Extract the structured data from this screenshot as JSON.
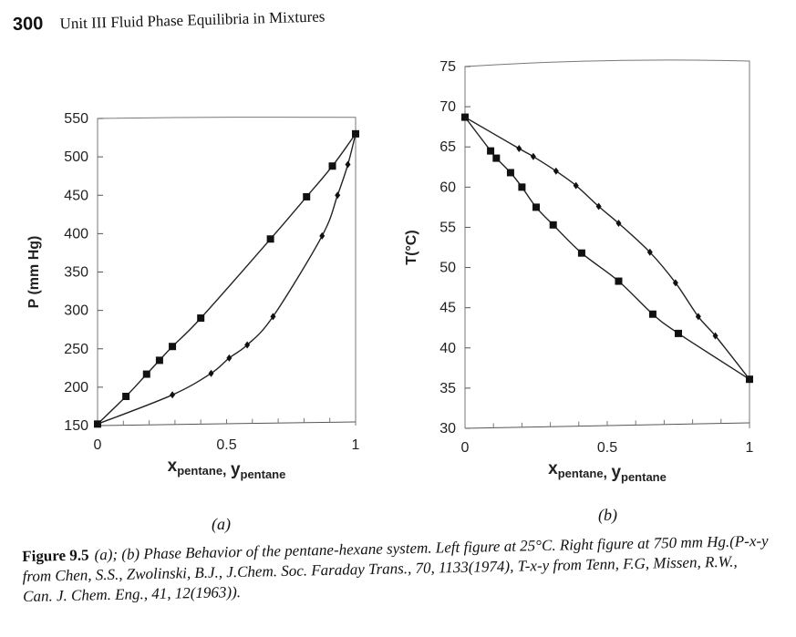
{
  "header": {
    "page_number": "300",
    "running_title": "Unit III   Fluid Phase Equilibria in Mixtures"
  },
  "panel_labels": {
    "a": "(a)",
    "b": "(b)"
  },
  "caption": {
    "lead": "Figure 9.5",
    "text": "(a); (b) Phase Behavior of the pentane-hexane system. Left figure at 25°C. Right figure at 750 mm Hg.(P-x-y from Chen, S.S., Zwolinski, B.J., J.Chem. Soc. Faraday Trans., 70, 1133(1974), T-x-y from Tenn, F.G, Missen, R.W., Can. J. Chem. Eng., 41, 12(1963))."
  },
  "chart_data": [
    {
      "type": "line",
      "xlabel": "xpentane, ypentane",
      "ylabel": "P (mm Hg)",
      "xlim": [
        0,
        1
      ],
      "ylim": [
        150,
        550
      ],
      "xticks": [
        0,
        0.5,
        1
      ],
      "xtick_labels": [
        "0",
        "0.5",
        "1"
      ],
      "yticks": [
        150,
        200,
        250,
        300,
        350,
        400,
        450,
        500,
        550
      ],
      "ytick_labels": [
        "150",
        "200",
        "250",
        "300",
        "350",
        "400",
        "450",
        "500",
        "550"
      ],
      "series": [
        {
          "marker": "square",
          "x": [
            0,
            0.11,
            0.19,
            0.24,
            0.29,
            0.4,
            0.67,
            0.81,
            0.91,
            1.0
          ],
          "y": [
            152,
            188,
            217,
            235,
            253,
            290,
            393,
            448,
            488,
            530
          ]
        },
        {
          "marker": "diamond",
          "x": [
            0,
            0.29,
            0.44,
            0.51,
            0.58,
            0.68,
            0.87,
            0.93,
            0.97,
            1.0
          ],
          "y": [
            152,
            190,
            218,
            238,
            255,
            292,
            397,
            450,
            490,
            530
          ]
        }
      ]
    },
    {
      "type": "line",
      "xlabel": "xpentane, ypentane",
      "ylabel": "T(°C)",
      "xlim": [
        0,
        1
      ],
      "ylim": [
        30,
        75
      ],
      "xticks": [
        0,
        0.5,
        1
      ],
      "xtick_labels": [
        "0",
        "0.5",
        "1"
      ],
      "yticks": [
        30,
        35,
        40,
        45,
        50,
        55,
        60,
        65,
        70,
        75
      ],
      "ytick_labels": [
        "30",
        "35",
        "40",
        "45",
        "50",
        "55",
        "60",
        "65",
        "70",
        "75"
      ],
      "series": [
        {
          "marker": "square",
          "x": [
            0,
            0.09,
            0.11,
            0.16,
            0.2,
            0.25,
            0.31,
            0.41,
            0.54,
            0.66,
            0.75,
            1.0
          ],
          "y": [
            68.7,
            64.5,
            63.6,
            61.8,
            60.0,
            57.5,
            55.3,
            51.8,
            48.3,
            44.2,
            41.8,
            36.1
          ]
        },
        {
          "marker": "diamond",
          "x": [
            0,
            0.19,
            0.24,
            0.32,
            0.39,
            0.47,
            0.54,
            0.65,
            0.74,
            0.82,
            0.88,
            1.0
          ],
          "y": [
            68.7,
            64.8,
            63.8,
            62.0,
            60.2,
            57.6,
            55.5,
            51.9,
            48.1,
            43.9,
            41.5,
            36.1
          ]
        }
      ]
    }
  ]
}
